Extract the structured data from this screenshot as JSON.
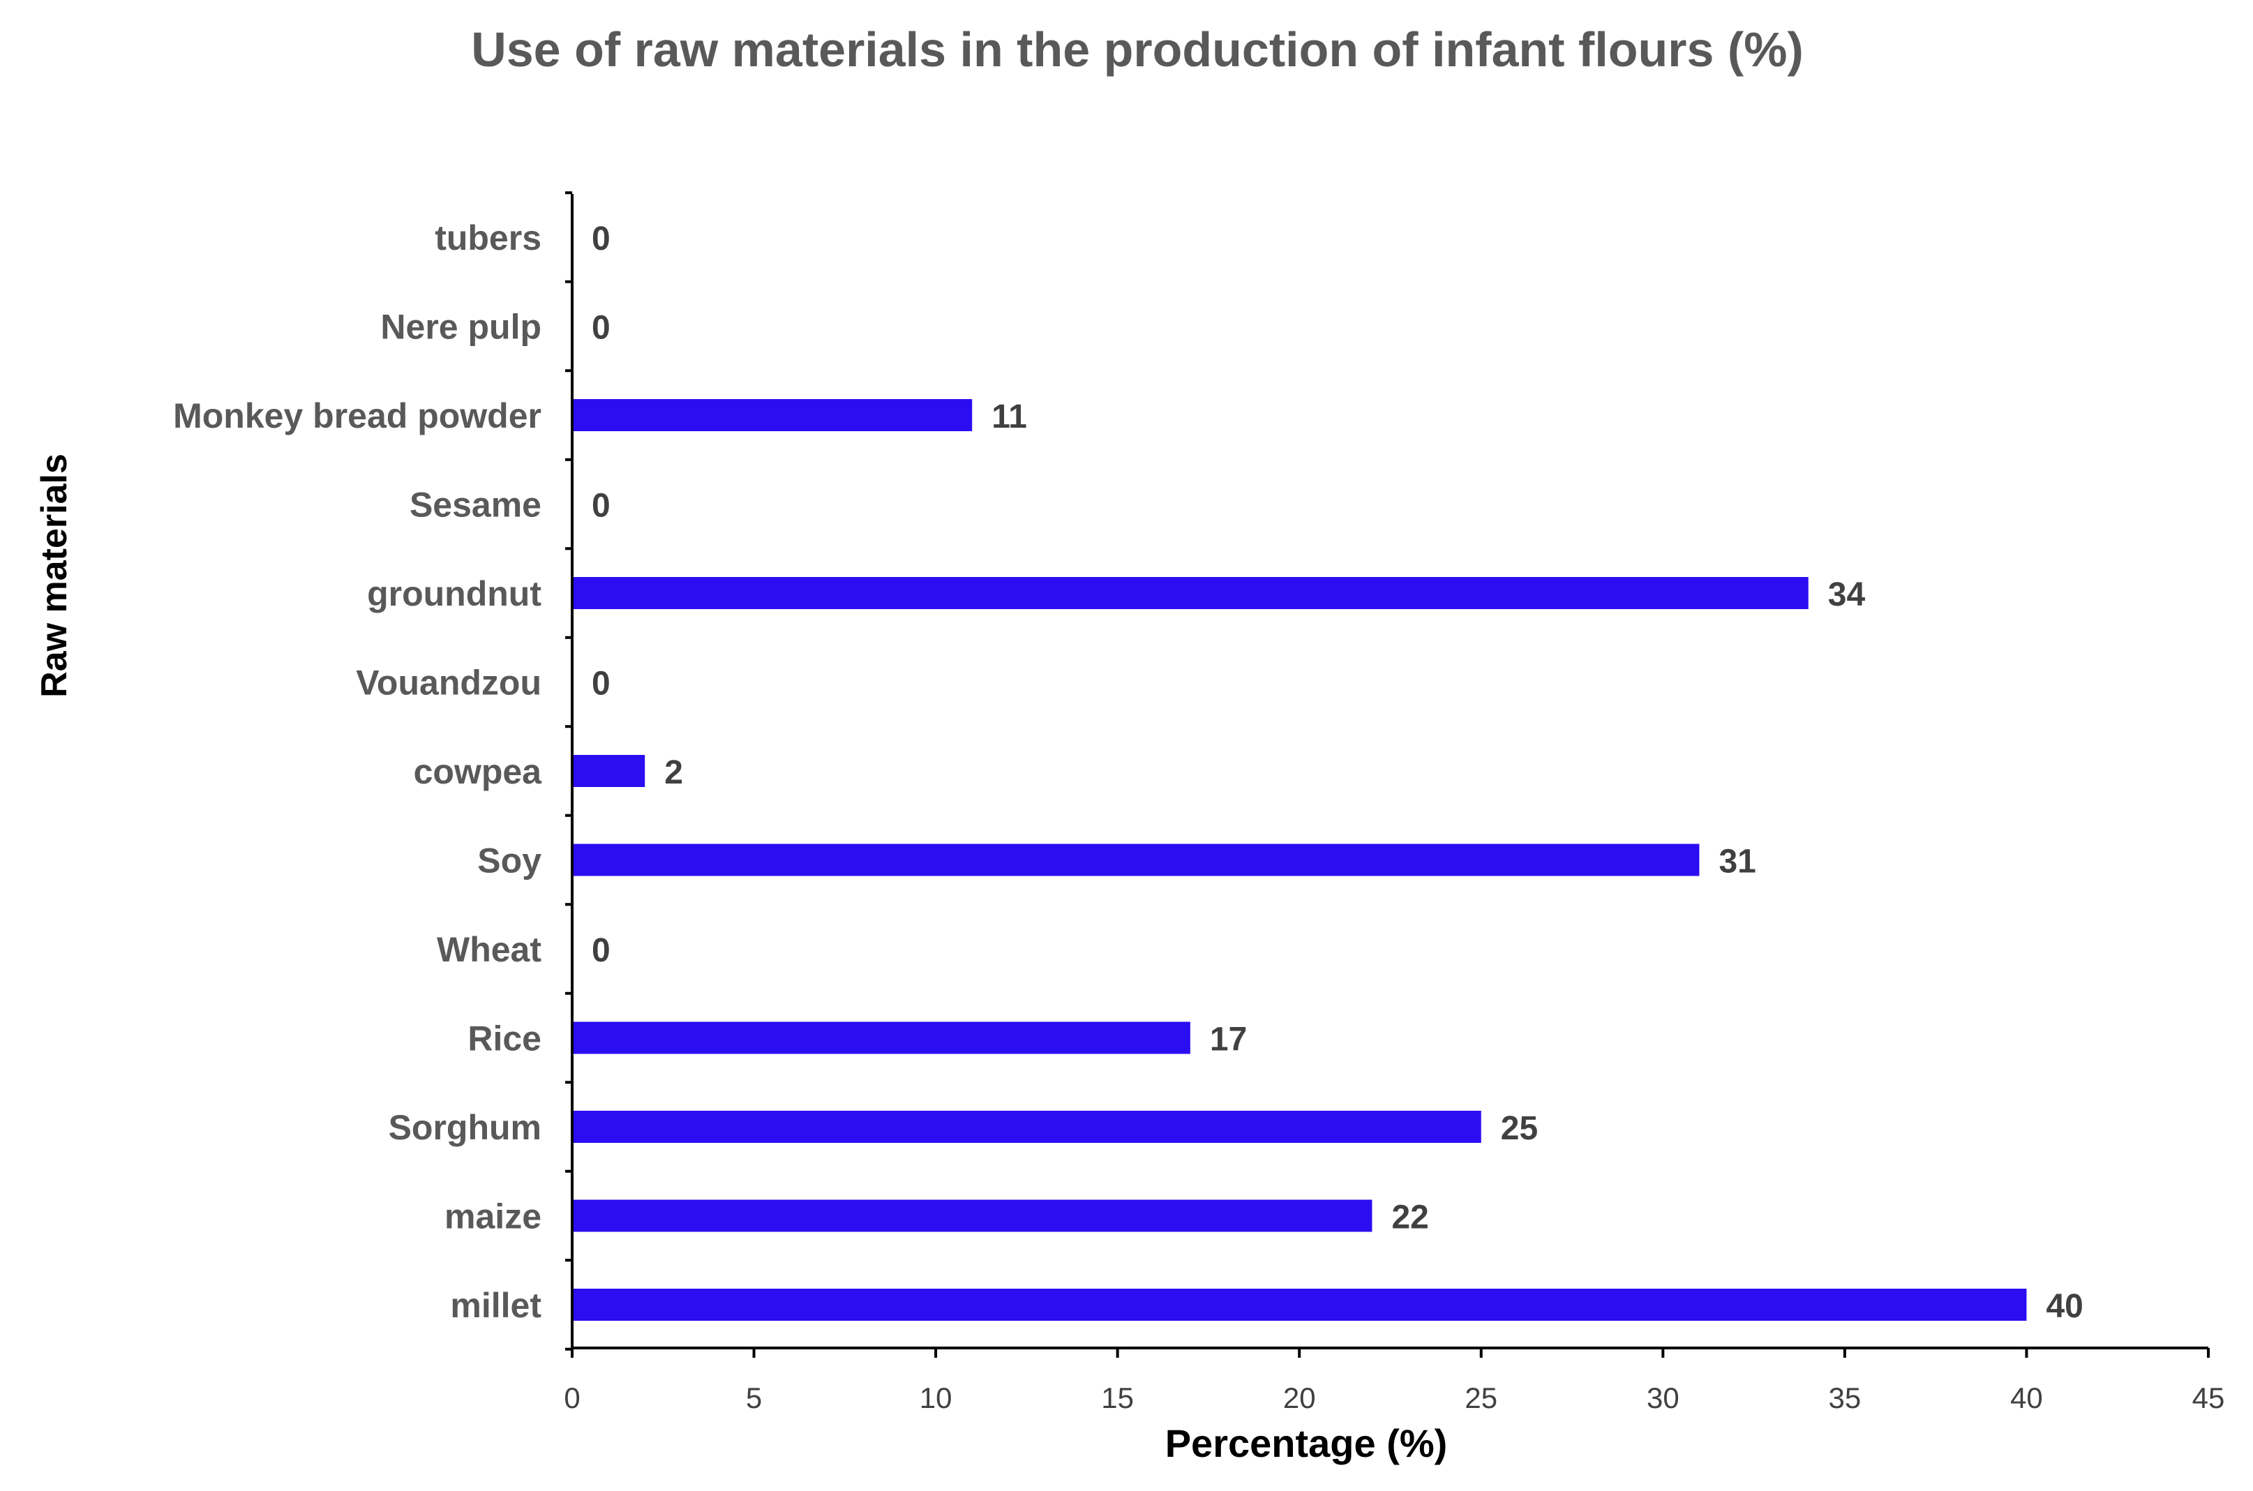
{
  "chart_data": {
    "type": "bar",
    "orientation": "horizontal",
    "title": "Use of raw materials in the production of infant flours (%)",
    "xlabel": "Percentage (%)",
    "ylabel": "Raw materials",
    "categories": [
      "millet",
      "maize",
      "Sorghum",
      "Rice",
      "Wheat",
      "Soy",
      "cowpea",
      "Vouandzou",
      "groundnut",
      "Sesame",
      "Monkey bread powder",
      "Nere pulp",
      "tubers"
    ],
    "values": [
      40,
      22,
      25,
      17,
      0,
      31,
      2,
      0,
      34,
      0,
      11,
      0,
      0
    ],
    "xlim": [
      0,
      45
    ],
    "xticks": [
      0,
      5,
      10,
      15,
      20,
      25,
      30,
      35,
      40,
      45
    ],
    "grid": false,
    "legend": "none",
    "data_labels": true,
    "bar_color": "#2B0DF2",
    "axis_color": "#000000",
    "text_color": "#595959"
  }
}
